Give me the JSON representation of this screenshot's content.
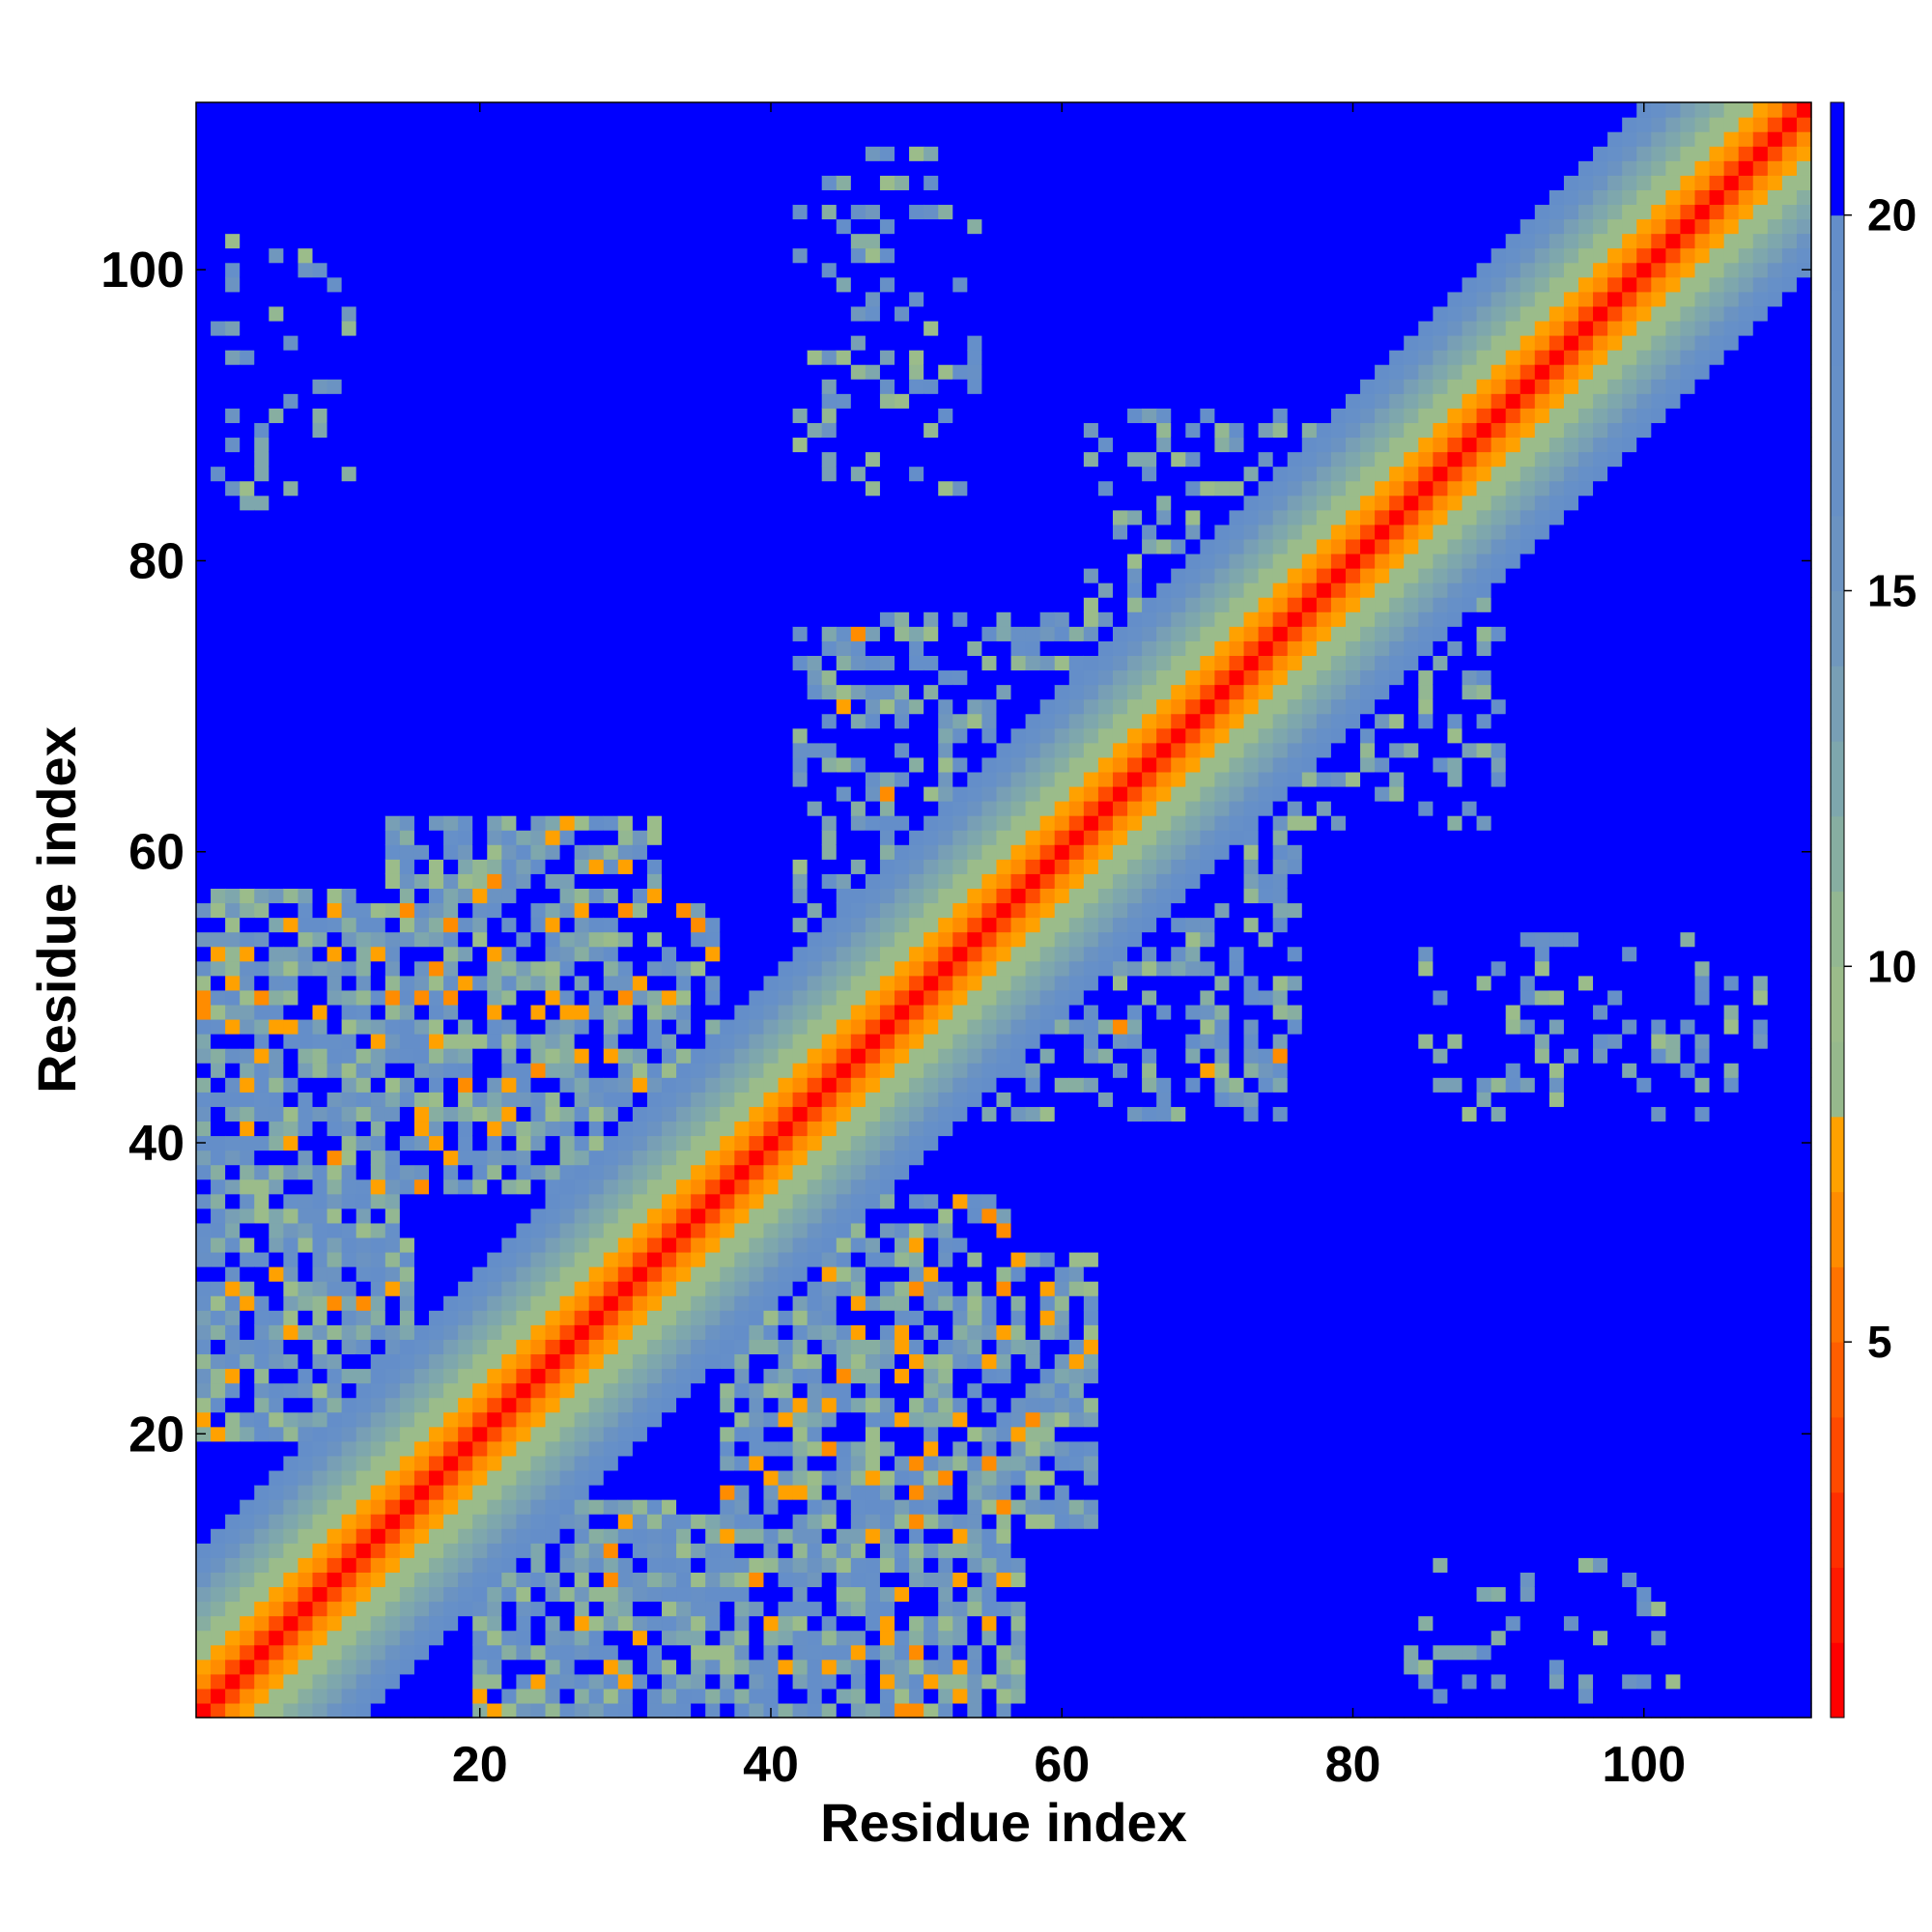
{
  "chart_data": {
    "type": "heatmap",
    "title": "",
    "xlabel": "Residue index",
    "ylabel": "Residue index",
    "xlim": [
      0.5,
      111.5
    ],
    "ylim": [
      0.5,
      111.5
    ],
    "x_ticks": [
      20,
      40,
      60,
      80,
      100
    ],
    "y_ticks": [
      20,
      40,
      60,
      80,
      100
    ],
    "x_tick_labels": [
      "20",
      "40",
      "60",
      "80",
      "100"
    ],
    "y_tick_labels": [
      "20",
      "40",
      "60",
      "80",
      "100"
    ],
    "n_residues": 111,
    "colorbar": {
      "range": [
        0,
        21.5
      ],
      "ticks": [
        5,
        10,
        15,
        20
      ],
      "tick_labels": [
        "5",
        "10",
        "15",
        "20"
      ],
      "bands": [
        {
          "from": 0,
          "to": 1,
          "color": "#ff0000"
        },
        {
          "from": 1,
          "to": 2,
          "color": "#ff1a00"
        },
        {
          "from": 2,
          "to": 3,
          "color": "#ff2f00"
        },
        {
          "from": 3,
          "to": 4,
          "color": "#ff4a00"
        },
        {
          "from": 4,
          "to": 5,
          "color": "#ff5e00"
        },
        {
          "from": 5,
          "to": 6,
          "color": "#ff7300"
        },
        {
          "from": 6,
          "to": 7,
          "color": "#ff8c00"
        },
        {
          "from": 7,
          "to": 8,
          "color": "#ffa100"
        },
        {
          "from": 8,
          "to": 9,
          "color": "#96b98c"
        },
        {
          "from": 9,
          "to": 10,
          "color": "#9bbc8a"
        },
        {
          "from": 10,
          "to": 11,
          "color": "#93b792"
        },
        {
          "from": 11,
          "to": 12,
          "color": "#87aea1"
        },
        {
          "from": 12,
          "to": 13,
          "color": "#7ea7ad"
        },
        {
          "from": 13,
          "to": 14,
          "color": "#789fb5"
        },
        {
          "from": 14,
          "to": 15,
          "color": "#7097bd"
        },
        {
          "from": 15,
          "to": 16,
          "color": "#6b93c2"
        },
        {
          "from": 16,
          "to": 17,
          "color": "#6790c6"
        },
        {
          "from": 17,
          "to": 18,
          "color": "#6690c8"
        },
        {
          "from": 18,
          "to": 19,
          "color": "#658fc9"
        },
        {
          "from": 19,
          "to": 20,
          "color": "#648ec9"
        },
        {
          "from": 20,
          "to": 21.5,
          "color": "#0000ff"
        }
      ]
    },
    "distance_model": {
      "description_free_params": true,
      "diagonal_profile": [
        {
          "offset": 0,
          "value": 0.5
        },
        {
          "offset": 1,
          "value": 3.5
        },
        {
          "offset": 2,
          "value": 6.5
        },
        {
          "offset": 3,
          "value": 7.5
        },
        {
          "offset": 4,
          "value": 9.0
        },
        {
          "offset": 5,
          "value": 9.8
        },
        {
          "offset": 6,
          "value": 11.2
        },
        {
          "offset": 7,
          "value": 12.3
        },
        {
          "offset": 8,
          "value": 13.8
        },
        {
          "offset": 9,
          "value": 15.5
        },
        {
          "offset": 10,
          "value": 17.5
        },
        {
          "offset": 11,
          "value": 19.2
        },
        {
          "offset": 12,
          "value": 21.0
        }
      ],
      "contact_regions": [
        {
          "i_range": [
            1,
            14
          ],
          "j_range": [
            20,
            57
          ],
          "density": 0.78,
          "orange_fraction": 0.09
        },
        {
          "i_range": [
            14,
            32
          ],
          "j_range": [
            40,
            62
          ],
          "density": 0.72,
          "orange_fraction": 0.08
        },
        {
          "i_range": [
            20,
            34
          ],
          "j_range": [
            1,
            15
          ],
          "density": 0.8,
          "orange_fraction": 0.1
        },
        {
          "i_range": [
            32,
            50
          ],
          "j_range": [
            1,
            14
          ],
          "density": 0.62,
          "orange_fraction": 0.03
        },
        {
          "i_range": [
            37,
            56
          ],
          "j_range": [
            12,
            36
          ],
          "density": 0.7,
          "orange_fraction": 0.1
        },
        {
          "i_range": [
            55,
            75
          ],
          "j_range": [
            42,
            60
          ],
          "density": 0.45,
          "orange_fraction": 0.03
        },
        {
          "i_range": [
            48,
            66
          ],
          "j_range": [
            58,
            76
          ],
          "density": 0.45,
          "orange_fraction": 0.03
        },
        {
          "i_range": [
            75,
            90
          ],
          "j_range": [
            62,
            78
          ],
          "density": 0.3,
          "orange_fraction": 0.0
        },
        {
          "i_range": [
            64,
            82
          ],
          "j_range": [
            72,
            88
          ],
          "density": 0.3,
          "orange_fraction": 0.0
        },
        {
          "i_range": [
            3,
            10
          ],
          "j_range": [
            85,
            102
          ],
          "density": 0.25,
          "orange_fraction": 0.0
        },
        {
          "i_range": [
            44,
            52
          ],
          "j_range": [
            90,
            108
          ],
          "density": 0.25,
          "orange_fraction": 0.0
        },
        {
          "i_range": [
            85,
            104
          ],
          "j_range": [
            42,
            54
          ],
          "density": 0.22,
          "orange_fraction": 0.0
        },
        {
          "i_range": [
            84,
            99
          ],
          "j_range": [
            2,
            11
          ],
          "density": 0.22,
          "orange_fraction": 0.0
        }
      ]
    }
  }
}
